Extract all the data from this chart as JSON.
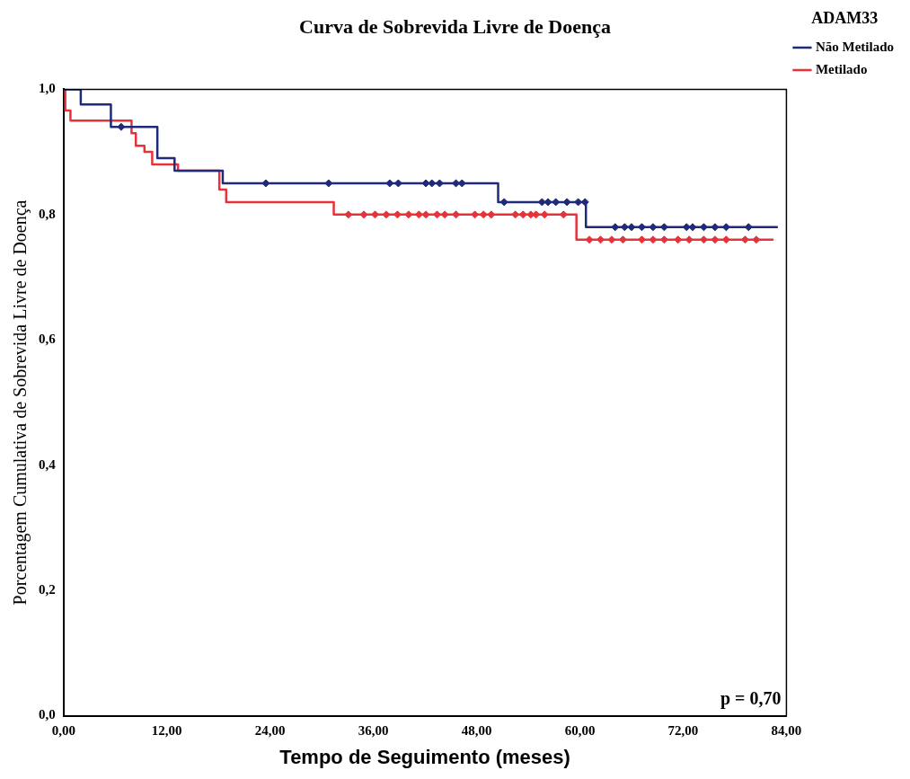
{
  "chart_data": {
    "type": "step",
    "title": "Curva de Sobrevida Livre de Doença",
    "xlabel": "Tempo de Seguimento (meses)",
    "ylabel": "Porcentagem Cumulativa de Sobrevida Livre de Doença",
    "legend_title": "ADAM33",
    "legend": "top right",
    "grid": false,
    "xlim": [
      0,
      84
    ],
    "xticks": [
      {
        "value": 0,
        "label": "0,00"
      },
      {
        "value": 12,
        "label": "12,00"
      },
      {
        "value": 24,
        "label": "24,00"
      },
      {
        "value": 36,
        "label": "36,00"
      },
      {
        "value": 48,
        "label": "48,00"
      },
      {
        "value": 60,
        "label": "60,00"
      },
      {
        "value": 72,
        "label": "72,00"
      },
      {
        "value": 84,
        "label": "84,00"
      }
    ],
    "ylim": [
      0,
      1
    ],
    "yticks": [
      {
        "value": 0,
        "label": "0,0"
      },
      {
        "value": 0.2,
        "label": "0,2"
      },
      {
        "value": 0.4,
        "label": "0,4"
      },
      {
        "value": 0.6,
        "label": "0,6"
      },
      {
        "value": 0.8,
        "label": "0,8"
      },
      {
        "value": 1,
        "label": "1,0"
      }
    ],
    "annotations": [
      "p = 0,70"
    ],
    "series": [
      {
        "name": "Não Metilado",
        "color": "#1f2a7a",
        "x": [
          0,
          2,
          5.5,
          10.9,
          12.9,
          18.5,
          50.5,
          60.7,
          83
        ],
        "values": [
          1,
          0.976,
          0.94,
          0.89,
          0.87,
          0.85,
          0.82,
          0.78,
          0.78
        ]
      },
      {
        "name": "Metilado",
        "color": "#e8323a",
        "x": [
          0,
          0.2,
          0.8,
          7.9,
          8.4,
          9.4,
          10.3,
          13.3,
          18.1,
          18.9,
          31.4,
          59.6,
          82.5
        ],
        "values": [
          1,
          0.966,
          0.95,
          0.93,
          0.91,
          0.9,
          0.88,
          0.87,
          0.84,
          0.82,
          0.8,
          0.76,
          0.76
        ]
      },
      {
        "type": "scatter",
        "marker": "diamond",
        "color": "#1f2a7a",
        "x": [
          6.7,
          23.5,
          30.8,
          37.9,
          38.9,
          42.1,
          42.8,
          43.7,
          45.6,
          46.3,
          51.2,
          55.6,
          56.3,
          57.2,
          58.5,
          59.8,
          60.6,
          64.1,
          65.2,
          66,
          67.2,
          68.5,
          69.8,
          72.4,
          73.1,
          74.4,
          75.7,
          77,
          79.6
        ],
        "values": [
          0.94,
          0.85,
          0.85,
          0.85,
          0.85,
          0.85,
          0.85,
          0.85,
          0.85,
          0.85,
          0.82,
          0.82,
          0.82,
          0.82,
          0.82,
          0.82,
          0.82,
          0.78,
          0.78,
          0.78,
          0.78,
          0.78,
          0.78,
          0.78,
          0.78,
          0.78,
          0.78,
          0.78,
          0.78
        ]
      },
      {
        "type": "scatter",
        "marker": "diamond",
        "color": "#e8323a",
        "x": [
          33.1,
          34.9,
          36.2,
          37.5,
          38.8,
          40.1,
          41.3,
          42.1,
          43.4,
          44.3,
          45.6,
          47.8,
          48.8,
          49.7,
          52.5,
          53.4,
          54.3,
          54.9,
          55.9,
          58.1,
          61.1,
          62.4,
          63.7,
          65,
          67.2,
          68.5,
          69.8,
          71.4,
          72.7,
          74.4,
          75.7,
          77,
          79.2,
          80.5
        ],
        "values": [
          0.8,
          0.8,
          0.8,
          0.8,
          0.8,
          0.8,
          0.8,
          0.8,
          0.8,
          0.8,
          0.8,
          0.8,
          0.8,
          0.8,
          0.8,
          0.8,
          0.8,
          0.8,
          0.8,
          0.8,
          0.76,
          0.76,
          0.76,
          0.76,
          0.76,
          0.76,
          0.76,
          0.76,
          0.76,
          0.76,
          0.76,
          0.76,
          0.76,
          0.76
        ]
      }
    ]
  }
}
